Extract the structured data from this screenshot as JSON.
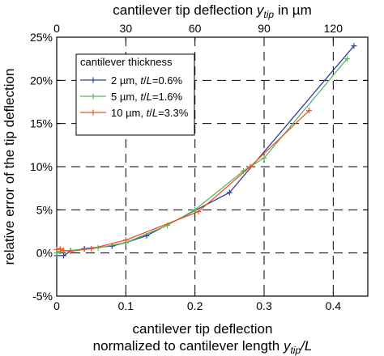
{
  "chart_data": {
    "type": "line",
    "xlabel_line1": "cantilever tip deflection",
    "xlabel_line2_prefix": "normalized to cantilever length ",
    "xlabel_line2_math": "y",
    "xlabel_line2_sub": "tip",
    "xlabel_line2_suffix": "/L",
    "x2label_prefix": "cantilever tip deflection ",
    "x2label_math": "y",
    "x2label_sub": "tip",
    "x2label_suffix": " in µm",
    "ylabel": "relative error of the tip deflection",
    "xlim": [
      0,
      0.45
    ],
    "ylim": [
      -5,
      25
    ],
    "x2lim": [
      0,
      135
    ],
    "xticks": [
      0,
      0.1,
      0.2,
      0.3,
      0.4
    ],
    "xtick_labels": [
      "0",
      "0.1",
      "0.2",
      "0.3",
      "0.4"
    ],
    "x2ticks": [
      0,
      30,
      60,
      90,
      120
    ],
    "x2tick_labels": [
      "0",
      "30",
      "60",
      "90",
      "120"
    ],
    "yticks": [
      -5,
      0,
      5,
      10,
      15,
      20,
      25
    ],
    "ytick_labels": [
      "-5%",
      "0%",
      "5%",
      "10%",
      "15%",
      "20%",
      "25%"
    ],
    "grid": true,
    "legend_title": "cantilever thickness",
    "legend_position": "top-left",
    "series": [
      {
        "name": "2 µm, t/L=0.6%",
        "color": "#2a3f9a",
        "x": [
          0.0,
          0.01,
          0.02,
          0.04,
          0.08,
          0.1,
          0.13,
          0.25,
          0.43
        ],
        "y": [
          -0.3,
          -0.3,
          0.2,
          0.5,
          0.8,
          1.2,
          2.0,
          7.0,
          24.0
        ]
      },
      {
        "name": "5 µm, t/L=1.6%",
        "color": "#5cb85c",
        "x": [
          0.0,
          0.005,
          0.02,
          0.06,
          0.1,
          0.16,
          0.2,
          0.27,
          0.3,
          0.42
        ],
        "y": [
          0.0,
          0.2,
          0.3,
          0.6,
          1.2,
          3.2,
          5.0,
          9.5,
          11.0,
          22.5
        ]
      },
      {
        "name": "10 µm, t/L=3.3%",
        "color": "#e8552a",
        "x": [
          0.0,
          0.005,
          0.01,
          0.02,
          0.05,
          0.1,
          0.205,
          0.28,
          0.365
        ],
        "y": [
          0.4,
          0.5,
          0.3,
          0.2,
          0.5,
          1.5,
          4.8,
          10.0,
          16.5
        ]
      }
    ]
  }
}
